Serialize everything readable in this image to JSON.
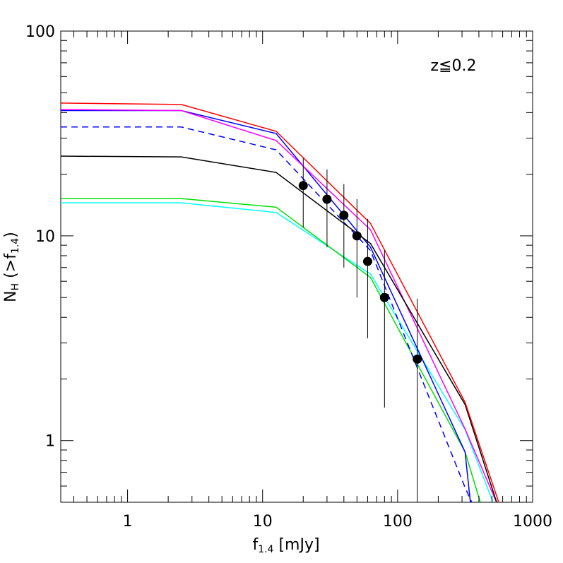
{
  "chart_data": {
    "type": "line",
    "xlabel": [
      "f",
      "1.4",
      " [mJy]"
    ],
    "ylabel": [
      "N",
      "H",
      " (>f",
      "1.4",
      ")"
    ],
    "annotation": "z≦0.2",
    "xscale": "log",
    "yscale": "log",
    "xlim": [
      0.32,
      1000
    ],
    "ylim": [
      0.5,
      100
    ],
    "xticks": [
      1,
      10,
      100,
      1000
    ],
    "yticks": [
      1,
      10,
      100
    ],
    "xminorticks": [
      0.4,
      0.5,
      0.6,
      0.7,
      0.8,
      0.9,
      2,
      3,
      4,
      5,
      6,
      7,
      8,
      9,
      20,
      30,
      40,
      50,
      60,
      70,
      80,
      90,
      200,
      300,
      400,
      500,
      600,
      700,
      800,
      900
    ],
    "yminorticks": [
      0.5,
      0.6,
      0.7,
      0.8,
      0.9,
      2,
      3,
      4,
      5,
      6,
      7,
      8,
      9,
      20,
      30,
      40,
      50,
      60,
      70,
      80,
      90
    ],
    "series": [
      {
        "color": "#00ffff",
        "dash": false,
        "x": [
          0.32,
          2.5,
          12.6,
          63,
          316,
          509
        ],
        "values": [
          14.5,
          14.5,
          13.0,
          6.5,
          1.13,
          0.5
        ]
      },
      {
        "color": "#00e000",
        "dash": false,
        "x": [
          0.32,
          2.5,
          12.6,
          63,
          316,
          410
        ],
        "values": [
          15.2,
          15.2,
          13.8,
          6.26,
          0.88,
          0.5
        ]
      },
      {
        "color": "#0000ff",
        "dash": true,
        "x": [
          0.32,
          2.5,
          12.6,
          63,
          316,
          354
        ],
        "values": [
          34.0,
          34.0,
          26.3,
          8.47,
          0.59,
          0.5
        ]
      },
      {
        "color": "#0000ff",
        "dash": false,
        "x": [
          0.32,
          2.5,
          12.6,
          63,
          316,
          346
        ],
        "values": [
          40.9,
          40.9,
          31.6,
          8.8,
          0.88,
          0.5
        ]
      },
      {
        "color": "#ff00ff",
        "dash": false,
        "x": [
          0.32,
          2.5,
          12.6,
          63,
          316,
          540
        ],
        "values": [
          41.4,
          40.9,
          29.2,
          10.7,
          1.14,
          0.5
        ]
      },
      {
        "color": "#000000",
        "dash": false,
        "x": [
          0.32,
          2.5,
          12.6,
          63,
          316,
          541
        ],
        "values": [
          24.5,
          24.3,
          20.4,
          9.17,
          1.5,
          0.5
        ]
      },
      {
        "color": "#ff0000",
        "dash": false,
        "x": [
          0.32,
          2.5,
          12.6,
          63,
          316,
          561
        ],
        "values": [
          44.5,
          43.8,
          32.4,
          11.5,
          1.54,
          0.5
        ]
      }
    ],
    "points": {
      "color": "#000000",
      "x": [
        20,
        30,
        40,
        50,
        60,
        80,
        140
      ],
      "values": [
        17.6,
        15.1,
        12.6,
        10.0,
        7.5,
        5.0,
        2.5
      ],
      "err_low": [
        11.0,
        8.8,
        7.0,
        5.0,
        3.16,
        1.45,
        0.5
      ],
      "err_high": [
        23.9,
        21.1,
        17.9,
        15.1,
        12.1,
        8.53,
        4.93
      ]
    }
  }
}
